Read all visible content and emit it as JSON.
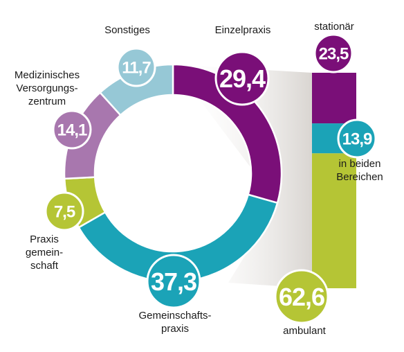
{
  "colors": {
    "purple": "#7a0f78",
    "teal": "#1ba3b7",
    "lime": "#b5c535",
    "lilac": "#a877ae",
    "lightblue": "#96c8d6",
    "shadow": "#e2dfdc"
  },
  "chart_data": [
    {
      "type": "pie",
      "variant": "donut",
      "title": "",
      "slices": [
        {
          "key": "einzel",
          "label": "Einzelpraxis",
          "value_label": "29,4",
          "value": 29.4,
          "color": "#7a0f78"
        },
        {
          "key": "gemeinschaft",
          "label": "Gemeinschafts-\npraxis",
          "value_label": "37,3",
          "value": 37.3,
          "color": "#1ba3b7"
        },
        {
          "key": "praxisgem",
          "label": "Praxis\ngemein-\nschaft",
          "value_label": "7,5",
          "value": 7.5,
          "color": "#b5c535"
        },
        {
          "key": "mvz",
          "label": "Medizinisches\nVersorgungs-\nzentrum",
          "value_label": "14,1",
          "value": 14.1,
          "color": "#a877ae"
        },
        {
          "key": "sonstiges",
          "label": "Sonstiges",
          "value_label": "11,7",
          "value": 11.7,
          "color": "#96c8d6"
        }
      ]
    },
    {
      "type": "bar",
      "variant": "stacked-100",
      "title": "",
      "segments": [
        {
          "key": "stationaer",
          "label": "stationär",
          "value_label": "23,5",
          "value": 23.5,
          "color": "#7a0f78"
        },
        {
          "key": "beide",
          "label": "in beiden\nBereichen",
          "value_label": "13,9",
          "value": 13.9,
          "color": "#1ba3b7"
        },
        {
          "key": "ambulant",
          "label": "ambulant",
          "value_label": "62,6",
          "value": 62.6,
          "color": "#b5c535"
        }
      ]
    }
  ]
}
